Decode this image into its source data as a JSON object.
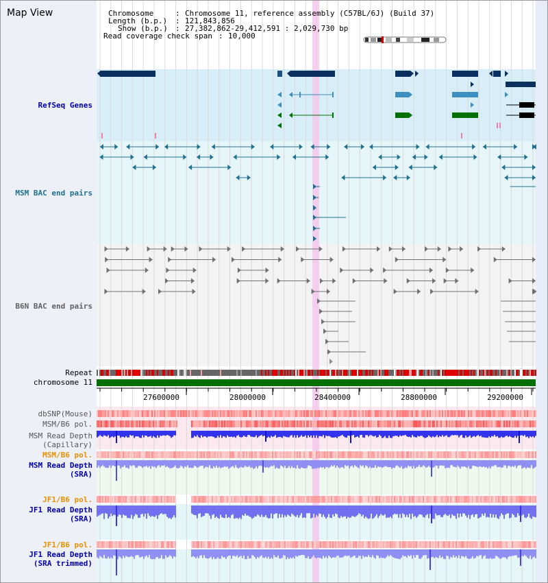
{
  "view_title": "Map View",
  "info": {
    "chromosome_key": "Chromosome",
    "chromosome_value": "Chromosome 11, reference assembly (C57BL/6J) (Build 37)",
    "length_key": "Length (b.p.)",
    "length_value": "121,843,856",
    "show_key": "Show (b.p.)",
    "show_value": "27,382,862-29,412,591 : 2,029,730 bp",
    "coverage_key": "Read coverage check span",
    "coverage_value": "10,000"
  },
  "tracks": {
    "refseq": "RefSeq Genes",
    "msm_bac": "MSM BAC end pairs",
    "b6n_bac": "B6N BAC end pairs",
    "repeat": "Repeat",
    "chromosome": "chromosome 11",
    "dbsnp": "dbSNP(Mouse)",
    "msm_b6_pol": "MSM/B6 pol.",
    "msm_depth_cap_1": "MSM Read Depth",
    "msm_depth_cap_2": "(Capillary)",
    "msm_b6_pol_sra": "MSM/B6 pol.",
    "msm_depth_sra_1": "MSM Read Depth",
    "msm_depth_sra_2": "(SRA)",
    "jf1_b6_pol": "JF1/B6 pol.",
    "jf1_depth_1": "JF1 Read Depth",
    "jf1_depth_2": "(SRA)",
    "jf1_b6_pol_trim": "JF1/B6 pol.",
    "jf1_trim_1": "JF1 Read Depth",
    "jf1_trim_2": "(SRA trimmed)"
  },
  "axis": {
    "ticks": [
      "27600000",
      "28000000",
      "28400000",
      "28800000",
      "29200000"
    ]
  },
  "colors": {
    "refseq_dark": "#0a3060",
    "refseq_mid": "#3d8fbf",
    "refseq_green": "#007000",
    "msm_bac": "#1f6f8f",
    "b6n_bac": "#707070",
    "chromosome_bar": "#007000",
    "depth_blue": "#2222ee",
    "depth_light": "#7777f0",
    "highlight": "#f4c8ec"
  }
}
